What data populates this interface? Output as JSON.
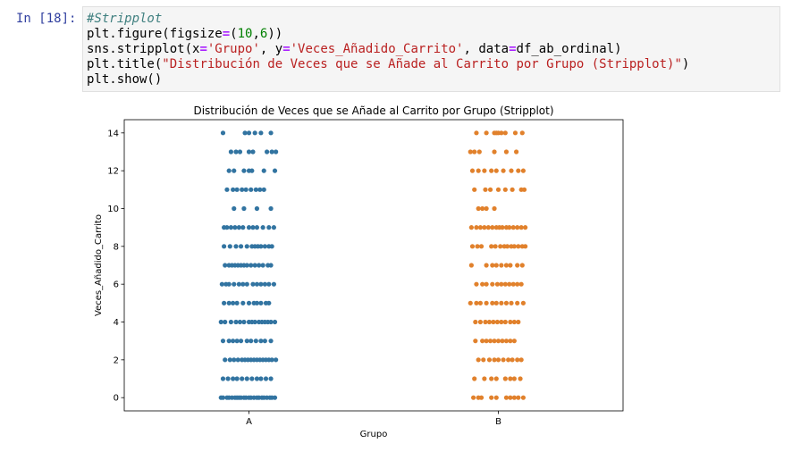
{
  "cell": {
    "prompt": "In [18]:",
    "code": {
      "l1": "#Stripplot",
      "l2": [
        "plt.figure(figsize",
        "=",
        "(",
        "10",
        ",",
        "6",
        "))"
      ],
      "l3": [
        "sns.stripplot(x",
        "=",
        "'Grupo'",
        ", y",
        "=",
        "'Veces_Añadido_Carrito'",
        ", data",
        "=",
        "df_ab_ordinal)"
      ],
      "l4": [
        "plt.title(",
        "\"Distribución de Veces que se Añade al Carrito por Grupo (Stripplot)\"",
        ")"
      ],
      "l5": "plt.show()"
    }
  },
  "chart_data": {
    "type": "scatter",
    "title": "Distribución de Veces que se Añade al Carrito por Grupo (Stripplot)",
    "xlabel": "Grupo",
    "ylabel": "Veces_Añadido_Carrito",
    "categories": [
      "A",
      "B"
    ],
    "yticks": [
      "0",
      "2",
      "4",
      "6",
      "8",
      "10",
      "12",
      "14"
    ],
    "ylim": [
      -0.7,
      14.7
    ],
    "grid": false,
    "legend": false,
    "series": [
      {
        "category": "A",
        "color": "#3274a1",
        "points": [
          {
            "y": 0,
            "j": [
              -0.28,
              -0.26,
              -0.22,
              -0.2,
              -0.17,
              -0.14,
              -0.12,
              -0.1,
              -0.08,
              -0.05,
              -0.03,
              0.0,
              0.02,
              0.05,
              0.08,
              0.1,
              0.13,
              0.15,
              0.18,
              0.21,
              0.23,
              0.26
            ]
          },
          {
            "y": 1,
            "j": [
              -0.26,
              -0.21,
              -0.16,
              -0.12,
              -0.07,
              -0.02,
              0.03,
              0.08,
              0.12,
              0.17,
              0.22
            ]
          },
          {
            "y": 2,
            "j": [
              -0.24,
              -0.19,
              -0.15,
              -0.11,
              -0.07,
              -0.04,
              -0.01,
              0.02,
              0.05,
              0.08,
              0.11,
              0.14,
              0.17,
              0.2,
              0.23,
              0.27
            ]
          },
          {
            "y": 3,
            "j": [
              -0.26,
              -0.2,
              -0.16,
              -0.12,
              -0.08,
              -0.02,
              0.02,
              0.07,
              0.12,
              0.16,
              0.22
            ]
          },
          {
            "y": 4,
            "j": [
              -0.28,
              -0.24,
              -0.18,
              -0.13,
              -0.09,
              -0.05,
              0.0,
              0.03,
              0.06,
              0.1,
              0.13,
              0.16,
              0.19,
              0.22,
              0.26
            ]
          },
          {
            "y": 5,
            "j": [
              -0.25,
              -0.2,
              -0.16,
              -0.12,
              -0.06,
              0.0,
              0.05,
              0.08,
              0.12,
              0.17,
              0.2
            ]
          },
          {
            "y": 6,
            "j": [
              -0.27,
              -0.23,
              -0.2,
              -0.15,
              -0.1,
              -0.06,
              -0.02,
              0.04,
              0.08,
              0.12,
              0.16,
              0.2,
              0.25
            ]
          },
          {
            "y": 7,
            "j": [
              -0.24,
              -0.2,
              -0.17,
              -0.14,
              -0.11,
              -0.08,
              -0.05,
              -0.02,
              0.02,
              0.06,
              0.1,
              0.14,
              0.19,
              0.22
            ]
          },
          {
            "y": 8,
            "j": [
              -0.25,
              -0.19,
              -0.13,
              -0.08,
              -0.02,
              0.03,
              0.06,
              0.09,
              0.12,
              0.16,
              0.2,
              0.23
            ]
          },
          {
            "y": 9,
            "j": [
              -0.25,
              -0.22,
              -0.18,
              -0.14,
              -0.1,
              -0.06,
              0.0,
              0.04,
              0.08,
              0.14,
              0.2,
              0.25
            ]
          },
          {
            "y": 10,
            "j": [
              -0.15,
              -0.05,
              0.08,
              0.22
            ]
          },
          {
            "y": 11,
            "j": [
              -0.22,
              -0.16,
              -0.12,
              -0.07,
              -0.03,
              0.02,
              0.07,
              0.11,
              0.15
            ]
          },
          {
            "y": 12,
            "j": [
              -0.2,
              -0.15,
              -0.05,
              0.0,
              0.03,
              0.15,
              0.26
            ]
          },
          {
            "y": 13,
            "j": [
              -0.18,
              -0.13,
              -0.09,
              0.0,
              0.04,
              0.18,
              0.23,
              0.27
            ]
          },
          {
            "y": 14,
            "j": [
              -0.26,
              -0.04,
              0.0,
              0.06,
              0.12,
              0.22
            ]
          }
        ]
      },
      {
        "category": "B",
        "color": "#e1812c",
        "points": [
          {
            "y": 0,
            "j": [
              -0.25,
              -0.2,
              -0.17,
              -0.07,
              -0.02,
              0.08,
              0.12,
              0.16,
              0.2,
              0.25
            ]
          },
          {
            "y": 1,
            "j": [
              -0.24,
              -0.14,
              -0.07,
              -0.02,
              0.07,
              0.12,
              0.16,
              0.22
            ]
          },
          {
            "y": 2,
            "j": [
              -0.2,
              -0.15,
              -0.09,
              -0.04,
              0.0,
              0.05,
              0.1,
              0.14,
              0.19,
              0.23
            ]
          },
          {
            "y": 3,
            "j": [
              -0.23,
              -0.16,
              -0.12,
              -0.08,
              -0.04,
              0.0,
              0.04,
              0.08,
              0.12,
              0.16
            ]
          },
          {
            "y": 4,
            "j": [
              -0.23,
              -0.18,
              -0.13,
              -0.09,
              -0.05,
              -0.01,
              0.03,
              0.07,
              0.12,
              0.16,
              0.2
            ]
          },
          {
            "y": 5,
            "j": [
              -0.28,
              -0.22,
              -0.18,
              -0.12,
              -0.06,
              -0.02,
              0.03,
              0.08,
              0.13,
              0.19,
              0.25
            ]
          },
          {
            "y": 6,
            "j": [
              -0.22,
              -0.16,
              -0.12,
              -0.06,
              -0.01,
              0.03,
              0.07,
              0.11,
              0.15,
              0.19,
              0.23
            ]
          },
          {
            "y": 7,
            "j": [
              -0.27,
              -0.12,
              -0.06,
              -0.02,
              0.03,
              0.08,
              0.12,
              0.19,
              0.24
            ]
          },
          {
            "y": 8,
            "j": [
              -0.26,
              -0.21,
              -0.17,
              -0.07,
              -0.03,
              0.02,
              0.06,
              0.09,
              0.13,
              0.16,
              0.2,
              0.24,
              0.27
            ]
          },
          {
            "y": 9,
            "j": [
              -0.27,
              -0.22,
              -0.18,
              -0.14,
              -0.1,
              -0.06,
              -0.02,
              0.01,
              0.04,
              0.08,
              0.11,
              0.15,
              0.19,
              0.23,
              0.27
            ]
          },
          {
            "y": 10,
            "j": [
              -0.2,
              -0.16,
              -0.12,
              -0.04
            ]
          },
          {
            "y": 11,
            "j": [
              -0.24,
              -0.13,
              -0.08,
              0.0,
              0.07,
              0.14,
              0.23,
              0.26
            ]
          },
          {
            "y": 12,
            "j": [
              -0.26,
              -0.2,
              -0.14,
              -0.07,
              -0.02,
              0.05,
              0.13,
              0.2,
              0.25
            ]
          },
          {
            "y": 13,
            "j": [
              -0.28,
              -0.24,
              -0.19,
              -0.04,
              0.08,
              0.18
            ]
          },
          {
            "y": 14,
            "j": [
              -0.22,
              -0.12,
              -0.04,
              -0.02,
              0.0,
              0.03,
              0.07,
              0.17,
              0.24
            ]
          }
        ]
      }
    ]
  }
}
